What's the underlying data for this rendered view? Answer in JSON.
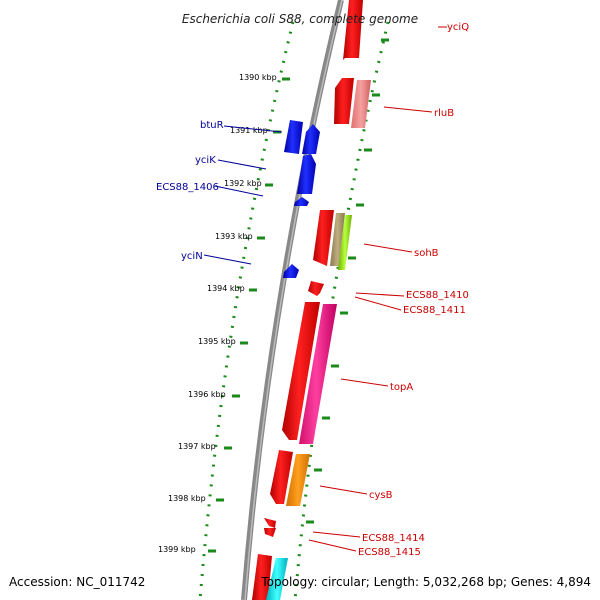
{
  "title": "Escherichia coli S88, complete genome",
  "accession": "Accession: NC_011742",
  "topology": "Topology: circular; Length: 5,032,268 bp; Genes: 4,894",
  "ticks": [
    "1390 kbp",
    "1391 kbp",
    "1392 kbp",
    "1393 kbp",
    "1394 kbp",
    "1395 kbp",
    "1396 kbp",
    "1397 kbp",
    "1398 kbp",
    "1399 kbp"
  ],
  "labels": {
    "yciQ": "yciQ",
    "rluB": "rluB",
    "btuR": "btuR",
    "yciK": "yciK",
    "ECS88_1406": "ECS88_1406",
    "sohB": "sohB",
    "yciN": "yciN",
    "ECS88_1410": "ECS88_1410",
    "ECS88_1411": "ECS88_1411",
    "topA": "topA",
    "cysB": "cysB",
    "ECS88_1414": "ECS88_1414",
    "ECS88_1415": "ECS88_1415"
  },
  "colors": {
    "backbone": "#888888",
    "forward_label": "#cc0000",
    "reverse_label": "#000099",
    "dots": "#1a8a1a"
  }
}
